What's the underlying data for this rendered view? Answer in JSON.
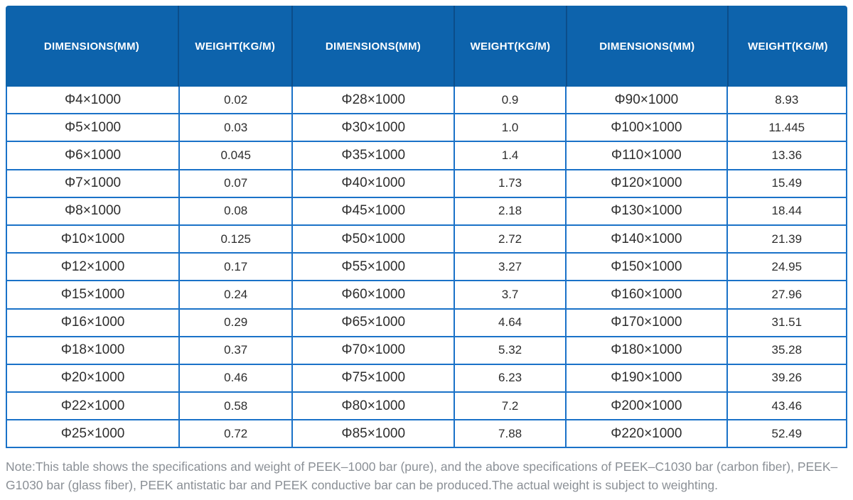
{
  "colors": {
    "header_background": "#0d63ac",
    "header_separator": "#0b4d8a",
    "header_text": "#ffffff",
    "table_border": "#1a72c8",
    "cell_text": "#2d2d2d",
    "note_text": "#8b9096",
    "page_background": "#ffffff"
  },
  "table": {
    "columns": [
      "DIMENSIONS(MM)",
      "WEIGHT(KG/M)",
      "DIMENSIONS(MM)",
      "WEIGHT(KG/M)",
      "DIMENSIONS(MM)",
      "WEIGHT(KG/M)"
    ],
    "rows": [
      [
        "Φ4×1000",
        "0.02",
        "Φ28×1000",
        "0.9",
        "Φ90×1000",
        "8.93"
      ],
      [
        "Φ5×1000",
        "0.03",
        "Φ30×1000",
        "1.0",
        "Φ100×1000",
        "11.445"
      ],
      [
        "Φ6×1000",
        "0.045",
        "Φ35×1000",
        "1.4",
        "Φ110×1000",
        "13.36"
      ],
      [
        "Φ7×1000",
        "0.07",
        "Φ40×1000",
        "1.73",
        "Φ120×1000",
        "15.49"
      ],
      [
        "Φ8×1000",
        "0.08",
        "Φ45×1000",
        "2.18",
        "Φ130×1000",
        "18.44"
      ],
      [
        "Φ10×1000",
        "0.125",
        "Φ50×1000",
        "2.72",
        "Φ140×1000",
        "21.39"
      ],
      [
        "Φ12×1000",
        "0.17",
        "Φ55×1000",
        "3.27",
        "Φ150×1000",
        "24.95"
      ],
      [
        "Φ15×1000",
        "0.24",
        "Φ60×1000",
        "3.7",
        "Φ160×1000",
        "27.96"
      ],
      [
        "Φ16×1000",
        "0.29",
        "Φ65×1000",
        "4.64",
        "Φ170×1000",
        "31.51"
      ],
      [
        "Φ18×1000",
        "0.37",
        "Φ70×1000",
        "5.32",
        "Φ180×1000",
        "35.28"
      ],
      [
        "Φ20×1000",
        "0.46",
        "Φ75×1000",
        "6.23",
        "Φ190×1000",
        "39.26"
      ],
      [
        "Φ22×1000",
        "0.58",
        "Φ80×1000",
        "7.2",
        "Φ200×1000",
        "43.46"
      ],
      [
        "Φ25×1000",
        "0.72",
        "Φ85×1000",
        "7.88",
        "Φ220×1000",
        "52.49"
      ]
    ]
  },
  "note": {
    "text": "Note:This table shows the specifications and weight of PEEK–1000 bar (pure), and the above specifications of PEEK–C1030 bar (carbon fiber), PEEK–G1030 bar (glass fiber), PEEK antistatic bar and PEEK conductive bar can be produced.The actual weight is subject to weighting."
  }
}
